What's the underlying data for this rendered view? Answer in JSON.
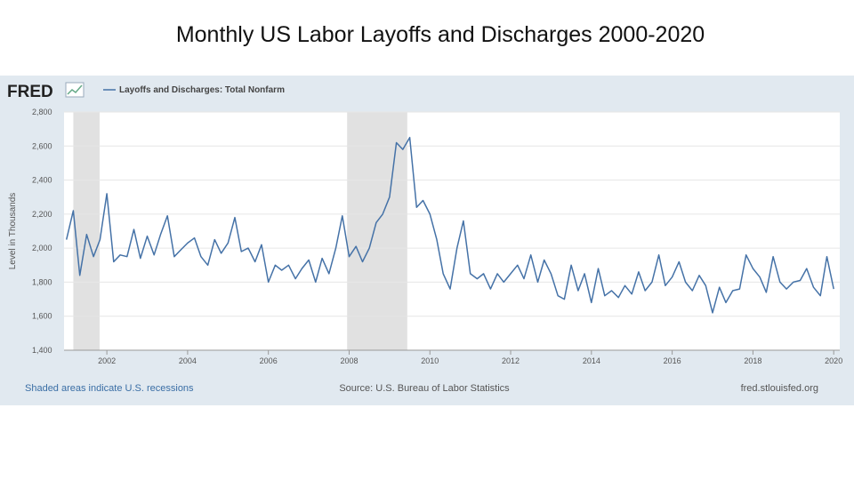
{
  "chart_data": {
    "type": "line",
    "title": "Monthly US Labor Layoffs and Discharges 2000-2020",
    "brand": "FRED",
    "y_label": "Level in Thousands",
    "recession_note": "Shaded areas indicate U.S. recessions",
    "source": "Source: U.S. Bureau of Labor Statistics",
    "site": "fred.stlouisfed.org",
    "recessions": [
      [
        2001.17,
        2001.82
      ],
      [
        2007.95,
        2009.44
      ]
    ],
    "recession_color": "#e1e1e1",
    "grid": true,
    "xlim": [
      2000.94,
      2020.15
    ],
    "ylim": [
      1400,
      2800
    ],
    "xticks": [
      2002,
      2004,
      2006,
      2008,
      2010,
      2012,
      2014,
      2016,
      2018,
      2020
    ],
    "yticks": [
      {
        "value": 1400,
        "label": "1,400"
      },
      {
        "value": 1600,
        "label": "1,600"
      },
      {
        "value": 1800,
        "label": "1,800"
      },
      {
        "value": 2000,
        "label": "2,000"
      },
      {
        "value": 2200,
        "label": "2,200"
      },
      {
        "value": 2400,
        "label": "2,400"
      },
      {
        "value": 2600,
        "label": "2,600"
      },
      {
        "value": 2800,
        "label": "2,800"
      }
    ],
    "x": [
      2001.0,
      2001.17,
      2001.33,
      2001.5,
      2001.67,
      2001.83,
      2002.0,
      2002.17,
      2002.33,
      2002.5,
      2002.67,
      2002.83,
      2003.0,
      2003.17,
      2003.33,
      2003.5,
      2003.67,
      2003.83,
      2004.0,
      2004.17,
      2004.33,
      2004.5,
      2004.67,
      2004.83,
      2005.0,
      2005.17,
      2005.33,
      2005.5,
      2005.67,
      2005.83,
      2006.0,
      2006.17,
      2006.33,
      2006.5,
      2006.67,
      2006.83,
      2007.0,
      2007.17,
      2007.33,
      2007.5,
      2007.67,
      2007.83,
      2008.0,
      2008.17,
      2008.33,
      2008.5,
      2008.67,
      2008.83,
      2009.0,
      2009.17,
      2009.33,
      2009.5,
      2009.67,
      2009.83,
      2010.0,
      2010.17,
      2010.33,
      2010.5,
      2010.67,
      2010.83,
      2011.0,
      2011.17,
      2011.33,
      2011.5,
      2011.67,
      2011.83,
      2012.0,
      2012.17,
      2012.33,
      2012.5,
      2012.67,
      2012.83,
      2013.0,
      2013.17,
      2013.33,
      2013.5,
      2013.67,
      2013.83,
      2014.0,
      2014.17,
      2014.33,
      2014.5,
      2014.67,
      2014.83,
      2015.0,
      2015.17,
      2015.33,
      2015.5,
      2015.67,
      2015.83,
      2016.0,
      2016.17,
      2016.33,
      2016.5,
      2016.67,
      2016.83,
      2017.0,
      2017.17,
      2017.33,
      2017.5,
      2017.67,
      2017.83,
      2018.0,
      2018.17,
      2018.33,
      2018.5,
      2018.67,
      2018.83,
      2019.0,
      2019.17,
      2019.33,
      2019.5,
      2019.67,
      2019.83,
      2020.0
    ],
    "series": [
      {
        "name": "Layoffs and Discharges: Total Nonfarm",
        "color": "#4572a7",
        "values": [
          2050,
          2220,
          1840,
          2080,
          1950,
          2050,
          2320,
          1920,
          1960,
          1950,
          2110,
          1940,
          2070,
          1960,
          2080,
          2190,
          1950,
          1990,
          2030,
          2060,
          1950,
          1900,
          2050,
          1970,
          2030,
          2180,
          1980,
          2000,
          1920,
          2020,
          1800,
          1900,
          1870,
          1900,
          1820,
          1880,
          1930,
          1800,
          1940,
          1850,
          2000,
          2190,
          1950,
          2010,
          1920,
          2000,
          2150,
          2200,
          2300,
          2620,
          2580,
          2650,
          2240,
          2280,
          2200,
          2050,
          1850,
          1760,
          2000,
          2160,
          1850,
          1820,
          1850,
          1760,
          1850,
          1800,
          1850,
          1900,
          1820,
          1960,
          1800,
          1930,
          1850,
          1720,
          1700,
          1900,
          1750,
          1850,
          1680,
          1880,
          1720,
          1750,
          1710,
          1780,
          1730,
          1860,
          1750,
          1800,
          1960,
          1780,
          1830,
          1920,
          1800,
          1750,
          1840,
          1780,
          1620,
          1770,
          1680,
          1750,
          1760,
          1960,
          1880,
          1830,
          1740,
          1950,
          1800,
          1760,
          1800,
          1810,
          1880,
          1770,
          1720,
          1950,
          1760
        ]
      }
    ]
  }
}
